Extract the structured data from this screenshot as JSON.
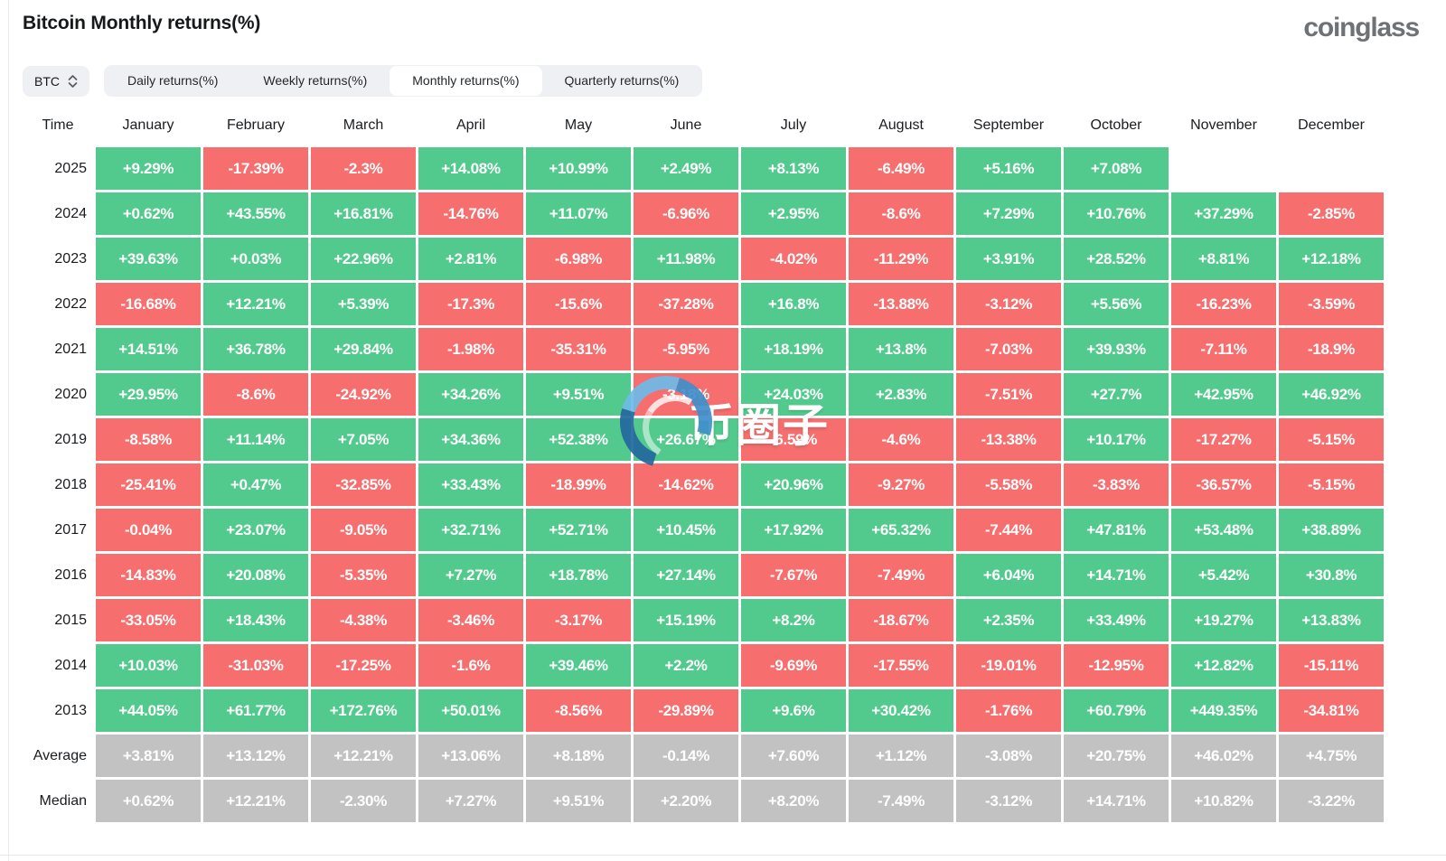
{
  "page": {
    "title": "Bitcoin Monthly returns(%)",
    "brand": "coinglass",
    "watermark": "币圈子"
  },
  "controls": {
    "coin_selector": {
      "value": "BTC"
    },
    "tabs": [
      {
        "label": "Daily returns(%)",
        "active": false
      },
      {
        "label": "Weekly returns(%)",
        "active": false
      },
      {
        "label": "Monthly returns(%)",
        "active": true
      },
      {
        "label": "Quarterly returns(%)",
        "active": false
      }
    ]
  },
  "theme": {
    "positive_color": "#53ca8d",
    "negative_color": "#f66e6e",
    "neutral_color": "#c2c2c2"
  },
  "chart_data": {
    "type": "heatmap",
    "title": "Bitcoin Monthly returns(%)",
    "columns": [
      "Time",
      "January",
      "February",
      "March",
      "April",
      "May",
      "June",
      "July",
      "August",
      "September",
      "October",
      "November",
      "December"
    ],
    "rows": [
      {
        "label": "2025",
        "values": [
          "+9.29%",
          "-17.39%",
          "-2.3%",
          "+14.08%",
          "+10.99%",
          "+2.49%",
          "+8.13%",
          "-6.49%",
          "+5.16%",
          "+7.08%",
          "",
          ""
        ]
      },
      {
        "label": "2024",
        "values": [
          "+0.62%",
          "+43.55%",
          "+16.81%",
          "-14.76%",
          "+11.07%",
          "-6.96%",
          "+2.95%",
          "-8.6%",
          "+7.29%",
          "+10.76%",
          "+37.29%",
          "-2.85%"
        ]
      },
      {
        "label": "2023",
        "values": [
          "+39.63%",
          "+0.03%",
          "+22.96%",
          "+2.81%",
          "-6.98%",
          "+11.98%",
          "-4.02%",
          "-11.29%",
          "+3.91%",
          "+28.52%",
          "+8.81%",
          "+12.18%"
        ]
      },
      {
        "label": "2022",
        "values": [
          "-16.68%",
          "+12.21%",
          "+5.39%",
          "-17.3%",
          "-15.6%",
          "-37.28%",
          "+16.8%",
          "-13.88%",
          "-3.12%",
          "+5.56%",
          "-16.23%",
          "-3.59%"
        ]
      },
      {
        "label": "2021",
        "values": [
          "+14.51%",
          "+36.78%",
          "+29.84%",
          "-1.98%",
          "-35.31%",
          "-5.95%",
          "+18.19%",
          "+13.8%",
          "-7.03%",
          "+39.93%",
          "-7.11%",
          "-18.9%"
        ]
      },
      {
        "label": "2020",
        "values": [
          "+29.95%",
          "-8.6%",
          "-24.92%",
          "+34.26%",
          "+9.51%",
          "-3.18%",
          "+24.03%",
          "+2.83%",
          "-7.51%",
          "+27.7%",
          "+42.95%",
          "+46.92%"
        ]
      },
      {
        "label": "2019",
        "values": [
          "-8.58%",
          "+11.14%",
          "+7.05%",
          "+34.36%",
          "+52.38%",
          "+26.67%",
          "-6.59%",
          "-4.6%",
          "-13.38%",
          "+10.17%",
          "-17.27%",
          "-5.15%"
        ]
      },
      {
        "label": "2018",
        "values": [
          "-25.41%",
          "+0.47%",
          "-32.85%",
          "+33.43%",
          "-18.99%",
          "-14.62%",
          "+20.96%",
          "-9.27%",
          "-5.58%",
          "-3.83%",
          "-36.57%",
          "-5.15%"
        ]
      },
      {
        "label": "2017",
        "values": [
          "-0.04%",
          "+23.07%",
          "-9.05%",
          "+32.71%",
          "+52.71%",
          "+10.45%",
          "+17.92%",
          "+65.32%",
          "-7.44%",
          "+47.81%",
          "+53.48%",
          "+38.89%"
        ]
      },
      {
        "label": "2016",
        "values": [
          "-14.83%",
          "+20.08%",
          "-5.35%",
          "+7.27%",
          "+18.78%",
          "+27.14%",
          "-7.67%",
          "-7.49%",
          "+6.04%",
          "+14.71%",
          "+5.42%",
          "+30.8%"
        ]
      },
      {
        "label": "2015",
        "values": [
          "-33.05%",
          "+18.43%",
          "-4.38%",
          "-3.46%",
          "-3.17%",
          "+15.19%",
          "+8.2%",
          "-18.67%",
          "+2.35%",
          "+33.49%",
          "+19.27%",
          "+13.83%"
        ]
      },
      {
        "label": "2014",
        "values": [
          "+10.03%",
          "-31.03%",
          "-17.25%",
          "-1.6%",
          "+39.46%",
          "+2.2%",
          "-9.69%",
          "-17.55%",
          "-19.01%",
          "-12.95%",
          "+12.82%",
          "-15.11%"
        ]
      },
      {
        "label": "2013",
        "values": [
          "+44.05%",
          "+61.77%",
          "+172.76%",
          "+50.01%",
          "-8.56%",
          "-29.89%",
          "+9.6%",
          "+30.42%",
          "-1.76%",
          "+60.79%",
          "+449.35%",
          "-34.81%"
        ]
      },
      {
        "label": "Average",
        "style": "neutral",
        "values": [
          "+3.81%",
          "+13.12%",
          "+12.21%",
          "+13.06%",
          "+8.18%",
          "-0.14%",
          "+7.60%",
          "+1.12%",
          "-3.08%",
          "+20.75%",
          "+46.02%",
          "+4.75%"
        ]
      },
      {
        "label": "Median",
        "style": "neutral",
        "values": [
          "+0.62%",
          "+12.21%",
          "-2.30%",
          "+7.27%",
          "+9.51%",
          "+2.20%",
          "+8.20%",
          "-7.49%",
          "-3.12%",
          "+14.71%",
          "+10.82%",
          "-3.22%"
        ]
      }
    ]
  }
}
